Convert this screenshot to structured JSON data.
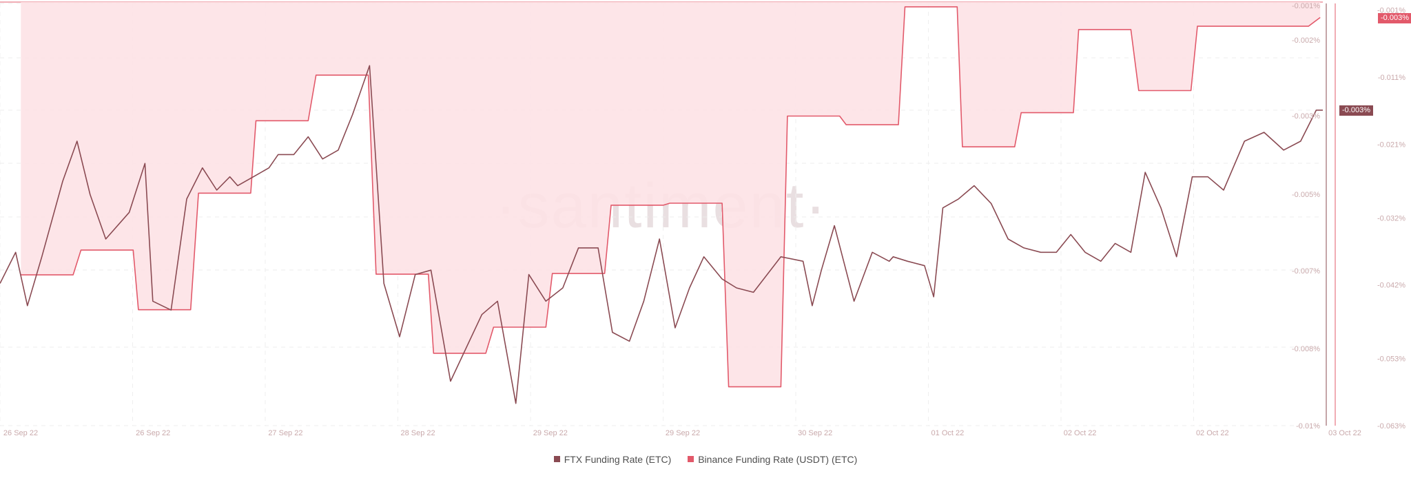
{
  "chart_data": {
    "type": "line",
    "watermark": "·santiment·",
    "x_ticks": [
      "26 Sep 22",
      "26 Sep 22",
      "27 Sep 22",
      "28 Sep 22",
      "29 Sep 22",
      "29 Sep 22",
      "30 Sep 22",
      "01 Oct 22",
      "02 Oct 22",
      "02 Oct 22",
      "03 Oct 22"
    ],
    "left_axis": {
      "ticks": [
        "-0.001%",
        "-0.002%",
        "-0.003%",
        "-0.005%",
        "-0.007%",
        "-0.008%",
        "-0.01%"
      ],
      "values": [
        -0.001,
        -0.002,
        -0.003,
        -0.005,
        -0.007,
        -0.008,
        -0.01
      ],
      "range": [
        -0.01,
        -0.0005
      ],
      "current_value_label": "-0.003%"
    },
    "right_axis": {
      "ticks": [
        "-0.001%",
        "-0.011%",
        "-0.021%",
        "-0.032%",
        "-0.042%",
        "-0.053%",
        "-0.063%"
      ],
      "values": [
        -0.001,
        -0.011,
        -0.021,
        -0.032,
        -0.042,
        -0.053,
        -0.063
      ],
      "range": [
        -0.063,
        0.0
      ],
      "current_value_label": "-0.003%"
    },
    "series": [
      {
        "name": "FTX Funding Rate (ETC)",
        "color": "#8a4a52",
        "axis": "left",
        "x": [
          0,
          1.2,
          2.1,
          3.2,
          4.8,
          5.9,
          6.9,
          8.1,
          9.9,
          11.1,
          11.7,
          13.1,
          14.3,
          15.5,
          16.6,
          17.6,
          18.2,
          19.4,
          20.6,
          21.3,
          22.5,
          23.6,
          24.7,
          25.9,
          27,
          28.3,
          29.4,
          30.6,
          31.8,
          33,
          34.5,
          36.9,
          38.1,
          39.5,
          40.5,
          41.8,
          43.1,
          44.3,
          45.8,
          46.9,
          48.2,
          49.3,
          50.5,
          51.7,
          52.8,
          53.9,
          55.3,
          56.4,
          57.7,
          59.8,
          61.5,
          62.2,
          62.9,
          63.9,
          65.4,
          66.8,
          68.1,
          68.4,
          69.5,
          70.8,
          71.5,
          72.2,
          73.4,
          74.6,
          75.9,
          77.2,
          78.4,
          79.7,
          80.9,
          82,
          83.1,
          84.3,
          85.4,
          86.6,
          87.7,
          88.9,
          90.1,
          91.3,
          92.5,
          93.7,
          95.3,
          96.8,
          98.3,
          99.6,
          100.8,
          101.3
        ],
        "y": [
          -0.0068,
          -0.0061,
          -0.0073,
          -0.0062,
          -0.0045,
          -0.0036,
          -0.0048,
          -0.0058,
          -0.0052,
          -0.0041,
          -0.0072,
          -0.0074,
          -0.0049,
          -0.0042,
          -0.0047,
          -0.0044,
          -0.0046,
          -0.0044,
          -0.0042,
          -0.0039,
          -0.0039,
          -0.0035,
          -0.004,
          -0.0038,
          -0.003,
          -0.0019,
          -0.0068,
          -0.008,
          -0.0066,
          -0.0065,
          -0.009,
          -0.0075,
          -0.0072,
          -0.0095,
          -0.0066,
          -0.0072,
          -0.0069,
          -0.006,
          -0.006,
          -0.0079,
          -0.0081,
          -0.0072,
          -0.0058,
          -0.0078,
          -0.0069,
          -0.0062,
          -0.0067,
          -0.0069,
          -0.007,
          -0.0062,
          -0.0063,
          -0.0073,
          -0.0065,
          -0.0055,
          -0.0072,
          -0.0061,
          -0.0063,
          -0.0062,
          -0.0063,
          -0.0064,
          -0.0071,
          -0.0051,
          -0.0049,
          -0.0046,
          -0.005,
          -0.0058,
          -0.006,
          -0.0061,
          -0.0061,
          -0.0057,
          -0.0061,
          -0.0063,
          -0.0059,
          -0.0061,
          -0.0043,
          -0.0051,
          -0.0062,
          -0.0044,
          -0.0044,
          -0.0047,
          -0.0036,
          -0.0034,
          -0.0038,
          -0.0036,
          -0.0029,
          -0.0029
        ],
        "note": ""
      },
      {
        "name": "Binance Funding Rate (USDT) (ETC)",
        "color": "#e2596a",
        "axis": "right",
        "x": [
          1.6,
          5.6,
          6.2,
          10.2,
          10.6,
          14.6,
          15.2,
          19.2,
          19.6,
          23.6,
          24.2,
          28.2,
          28.8,
          32.8,
          33.2,
          37.2,
          37.8,
          41.8,
          42.3,
          46.3,
          46.8,
          50.8,
          51.3,
          55.3,
          55.8,
          59.8,
          60.3,
          64.3,
          64.8,
          68.8,
          69.3,
          73.3,
          73.7,
          77.7,
          78.2,
          82.2,
          82.6,
          86.6,
          87.2,
          91.2,
          91.7,
          95.7,
          96.2,
          100.2,
          101.1
        ],
        "y": [
          -0.0405,
          -0.0405,
          -0.0368,
          -0.0368,
          -0.0457,
          -0.0457,
          -0.0283,
          -0.0283,
          -0.0175,
          -0.0175,
          -0.0107,
          -0.0107,
          -0.0404,
          -0.0404,
          -0.0522,
          -0.0522,
          -0.0483,
          -0.0483,
          -0.0403,
          -0.0403,
          -0.0301,
          -0.0301,
          -0.0298,
          -0.0298,
          -0.0572,
          -0.0572,
          -0.0168,
          -0.0168,
          -0.0181,
          -0.0181,
          -0.0005,
          -0.0005,
          -0.0214,
          -0.0214,
          -0.0163,
          -0.0163,
          -0.0039,
          -0.0039,
          -0.013,
          -0.013,
          -0.0034,
          -0.0034,
          -0.0034,
          -0.0034,
          -0.0021
        ]
      }
    ]
  }
}
